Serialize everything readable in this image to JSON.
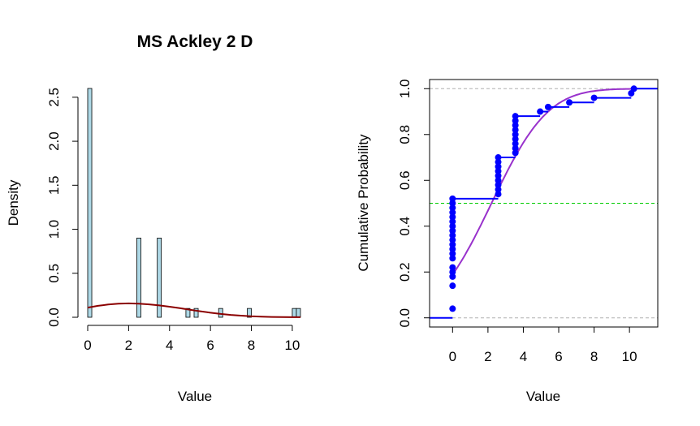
{
  "chart_data": [
    {
      "type": "histogram",
      "title": "MS Ackley 2 D",
      "xlabel": "Value",
      "ylabel": "Density",
      "xlim": [
        0,
        10.4
      ],
      "ylim": [
        0,
        2.6
      ],
      "xticks": [
        0,
        2,
        4,
        6,
        8,
        10
      ],
      "yticks": [
        0.0,
        0.5,
        1.0,
        1.5,
        2.0,
        2.5
      ],
      "bin_width": 0.2,
      "bars": [
        {
          "x0": 0.0,
          "x1": 0.2,
          "density": 2.6
        },
        {
          "x0": 2.4,
          "x1": 2.6,
          "density": 0.9
        },
        {
          "x0": 3.4,
          "x1": 3.6,
          "density": 0.9
        },
        {
          "x0": 4.8,
          "x1": 5.0,
          "density": 0.1
        },
        {
          "x0": 5.2,
          "x1": 5.4,
          "density": 0.1
        },
        {
          "x0": 6.4,
          "x1": 6.6,
          "density": 0.1
        },
        {
          "x0": 7.8,
          "x1": 8.0,
          "density": 0.1
        },
        {
          "x0": 10.0,
          "x1": 10.2,
          "density": 0.1
        },
        {
          "x0": 10.2,
          "x1": 10.4,
          "density": 0.1
        }
      ],
      "bar_fill": "#add8e6",
      "density_curve": {
        "color": "#8b0000",
        "points": [
          [
            0.0,
            0.11
          ],
          [
            0.5,
            0.13
          ],
          [
            1.0,
            0.145
          ],
          [
            1.5,
            0.155
          ],
          [
            2.0,
            0.158
          ],
          [
            2.5,
            0.155
          ],
          [
            3.0,
            0.147
          ],
          [
            3.5,
            0.135
          ],
          [
            4.0,
            0.12
          ],
          [
            4.5,
            0.103
          ],
          [
            5.0,
            0.085
          ],
          [
            5.5,
            0.068
          ],
          [
            6.0,
            0.052
          ],
          [
            6.5,
            0.038
          ],
          [
            7.0,
            0.027
          ],
          [
            7.5,
            0.018
          ],
          [
            8.0,
            0.011
          ],
          [
            8.5,
            0.007
          ],
          [
            9.0,
            0.004
          ],
          [
            9.5,
            0.002
          ],
          [
            10.0,
            0.001
          ],
          [
            10.4,
            0.0005
          ]
        ]
      }
    },
    {
      "type": "ecdf",
      "xlabel": "Value",
      "ylabel": "Cumulative Probability",
      "xlim": [
        -1.3,
        11.6
      ],
      "ylim": [
        -0.04,
        1.04
      ],
      "xticks": [
        0,
        2,
        4,
        6,
        8,
        10
      ],
      "yticks": [
        0.0,
        0.2,
        0.4,
        0.6,
        0.8,
        1.0
      ],
      "ecdf_color": "#0000ff",
      "steps": [
        {
          "x": 0.0,
          "y": 0.52
        },
        {
          "x": 2.58,
          "y": 0.7
        },
        {
          "x": 3.55,
          "y": 0.88
        },
        {
          "x": 4.95,
          "y": 0.9
        },
        {
          "x": 5.4,
          "y": 0.92
        },
        {
          "x": 6.6,
          "y": 0.94
        },
        {
          "x": 8.0,
          "y": 0.96
        },
        {
          "x": 10.1,
          "y": 0.98
        },
        {
          "x": 10.25,
          "y": 1.0
        }
      ],
      "points": [
        [
          0.0,
          0.04
        ],
        [
          0.0,
          0.14
        ],
        [
          0.0,
          0.18
        ],
        [
          0.0,
          0.2
        ],
        [
          0.0,
          0.22
        ],
        [
          0.0,
          0.26
        ],
        [
          0.0,
          0.28
        ],
        [
          0.0,
          0.3
        ],
        [
          0.0,
          0.32
        ],
        [
          0.0,
          0.34
        ],
        [
          0.0,
          0.36
        ],
        [
          0.0,
          0.38
        ],
        [
          0.0,
          0.4
        ],
        [
          0.0,
          0.42
        ],
        [
          0.0,
          0.44
        ],
        [
          0.0,
          0.46
        ],
        [
          0.0,
          0.48
        ],
        [
          0.0,
          0.5
        ],
        [
          0.0,
          0.52
        ],
        [
          2.58,
          0.54
        ],
        [
          2.58,
          0.56
        ],
        [
          2.58,
          0.58
        ],
        [
          2.58,
          0.6
        ],
        [
          2.58,
          0.62
        ],
        [
          2.58,
          0.64
        ],
        [
          2.58,
          0.66
        ],
        [
          2.58,
          0.68
        ],
        [
          2.58,
          0.7
        ],
        [
          3.55,
          0.72
        ],
        [
          3.55,
          0.74
        ],
        [
          3.55,
          0.76
        ],
        [
          3.55,
          0.78
        ],
        [
          3.55,
          0.8
        ],
        [
          3.55,
          0.82
        ],
        [
          3.55,
          0.84
        ],
        [
          3.55,
          0.86
        ],
        [
          3.55,
          0.88
        ],
        [
          4.95,
          0.9
        ],
        [
          5.4,
          0.92
        ],
        [
          6.6,
          0.94
        ],
        [
          8.0,
          0.96
        ],
        [
          10.1,
          0.98
        ],
        [
          10.25,
          1.0
        ]
      ],
      "normal_cdf": {
        "color": "#9932cc",
        "mean": 2.2,
        "sd": 2.5
      },
      "reference_lines": [
        {
          "y": 0.0,
          "color": "#b0b0b0",
          "style": "dashed"
        },
        {
          "y": 1.0,
          "color": "#b0b0b0",
          "style": "dashed"
        },
        {
          "y": 0.5,
          "color": "#00cc00",
          "style": "dashed"
        }
      ]
    }
  ]
}
